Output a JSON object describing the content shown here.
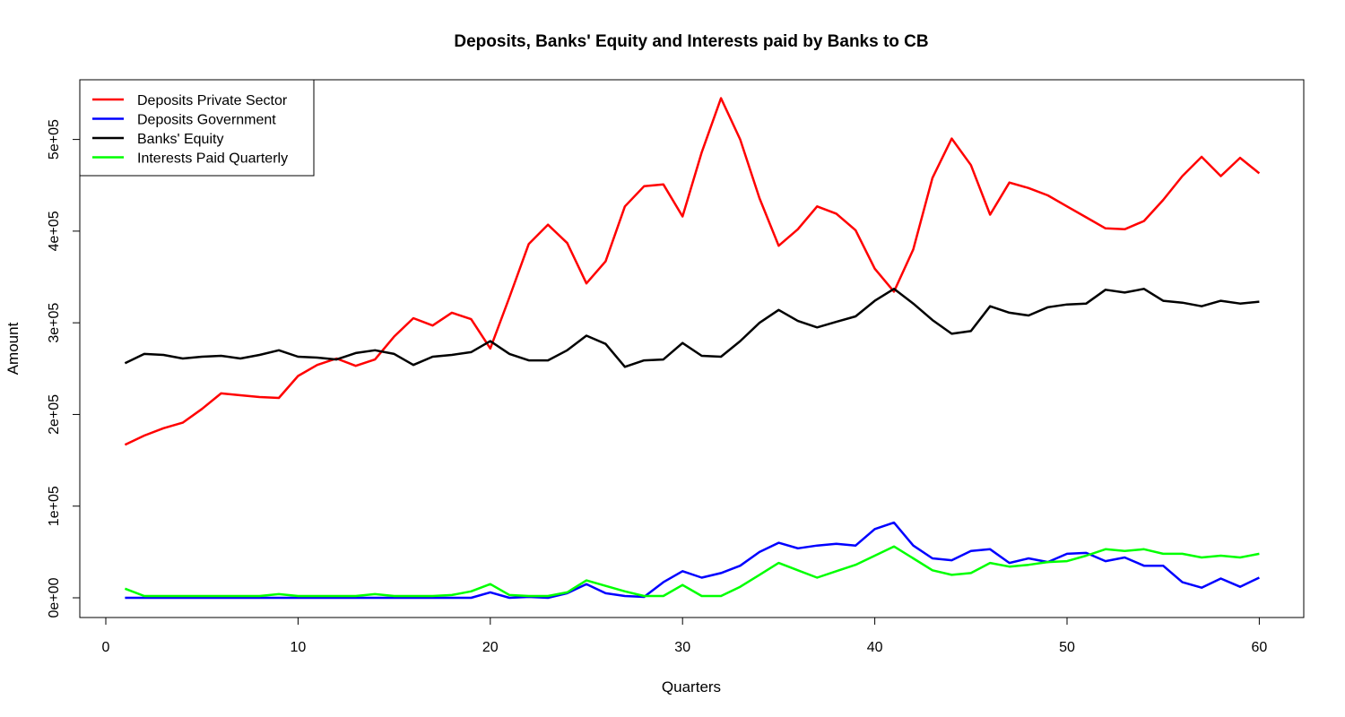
{
  "chart_data": {
    "type": "line",
    "title": "Deposits, Banks' Equity and Interests paid by Banks to CB",
    "xlabel": "Quarters",
    "ylabel": "Amount",
    "xlim": [
      1,
      60
    ],
    "ylim": [
      0,
      550000
    ],
    "x_ticks": [
      0,
      10,
      20,
      30,
      40,
      50,
      60
    ],
    "x_tick_labels": [
      "0",
      "10",
      "20",
      "30",
      "40",
      "50",
      "60"
    ],
    "y_ticks": [
      0,
      100000,
      200000,
      300000,
      400000,
      500000
    ],
    "y_tick_labels": [
      "0e+00",
      "1e+05",
      "2e+05",
      "3e+05",
      "4e+05",
      "5e+05"
    ],
    "grid": false,
    "legend_position": "top-left",
    "x": [
      1,
      2,
      3,
      4,
      5,
      6,
      7,
      8,
      9,
      10,
      11,
      12,
      13,
      14,
      15,
      16,
      17,
      18,
      19,
      20,
      21,
      22,
      23,
      24,
      25,
      26,
      27,
      28,
      29,
      30,
      31,
      32,
      33,
      34,
      35,
      36,
      37,
      38,
      39,
      40,
      41,
      42,
      43,
      44,
      45,
      46,
      47,
      48,
      49,
      50,
      51,
      52,
      53,
      54,
      55,
      56,
      57,
      58,
      59,
      60
    ],
    "series": [
      {
        "name": "Deposits Private Sector",
        "color": "#ff0000",
        "values": [
          167000,
          177000,
          185000,
          191000,
          206000,
          223000,
          221000,
          219000,
          218000,
          242000,
          254000,
          261000,
          253000,
          260000,
          285000,
          305000,
          297000,
          311000,
          304000,
          272000,
          328000,
          386000,
          407000,
          387000,
          343000,
          367000,
          427000,
          449000,
          451000,
          416000,
          486000,
          545000,
          500000,
          436000,
          384000,
          402000,
          427000,
          419000,
          401000,
          359000,
          334000,
          380000,
          458000,
          501000,
          472000,
          418000,
          453000,
          447000,
          439000,
          427000,
          415000,
          403000,
          402000,
          411000,
          434000,
          460000,
          481000,
          460000,
          480000,
          463000
        ]
      },
      {
        "name": "Deposits Government",
        "color": "#0000ff",
        "values": [
          0,
          0,
          0,
          0,
          0,
          0,
          0,
          0,
          0,
          0,
          0,
          0,
          0,
          0,
          0,
          0,
          0,
          0,
          0,
          6000,
          0,
          1000,
          0,
          5000,
          15000,
          5000,
          2000,
          1000,
          17000,
          29000,
          22000,
          27000,
          35000,
          50000,
          60000,
          54000,
          57000,
          59000,
          57000,
          75000,
          82000,
          57000,
          43000,
          41000,
          51000,
          53000,
          38000,
          43000,
          39000,
          48000,
          49000,
          40000,
          44000,
          35000,
          35000,
          17000,
          11000,
          21000,
          12000,
          22000
        ]
      },
      {
        "name": "Banks' Equity",
        "color": "#000000",
        "values": [
          256000,
          266000,
          265000,
          261000,
          263000,
          264000,
          261000,
          265000,
          270000,
          263000,
          262000,
          260000,
          267000,
          270000,
          266000,
          254000,
          263000,
          265000,
          268000,
          280000,
          266000,
          259000,
          259000,
          270000,
          286000,
          277000,
          252000,
          259000,
          260000,
          278000,
          264000,
          263000,
          280000,
          300000,
          314000,
          302000,
          295000,
          301000,
          307000,
          324000,
          337000,
          321000,
          303000,
          288000,
          291000,
          318000,
          311000,
          308000,
          317000,
          320000,
          321000,
          336000,
          333000,
          337000,
          324000,
          322000,
          318000,
          324000,
          321000,
          323000
        ]
      },
      {
        "name": "Interests Paid Quarterly",
        "color": "#00ff00",
        "values": [
          10000,
          2000,
          2000,
          2000,
          2000,
          2000,
          2000,
          2000,
          4000,
          2000,
          2000,
          2000,
          2000,
          4000,
          2000,
          2000,
          2000,
          3000,
          7000,
          15000,
          3000,
          2000,
          2000,
          6000,
          19000,
          13000,
          7000,
          2000,
          2000,
          14000,
          2000,
          2000,
          12000,
          25000,
          38000,
          30000,
          22000,
          29000,
          36000,
          46000,
          56000,
          43000,
          30000,
          25000,
          27000,
          38000,
          34000,
          36000,
          39000,
          40000,
          46000,
          53000,
          51000,
          53000,
          48000,
          48000,
          44000,
          46000,
          44000,
          48000
        ]
      }
    ]
  }
}
